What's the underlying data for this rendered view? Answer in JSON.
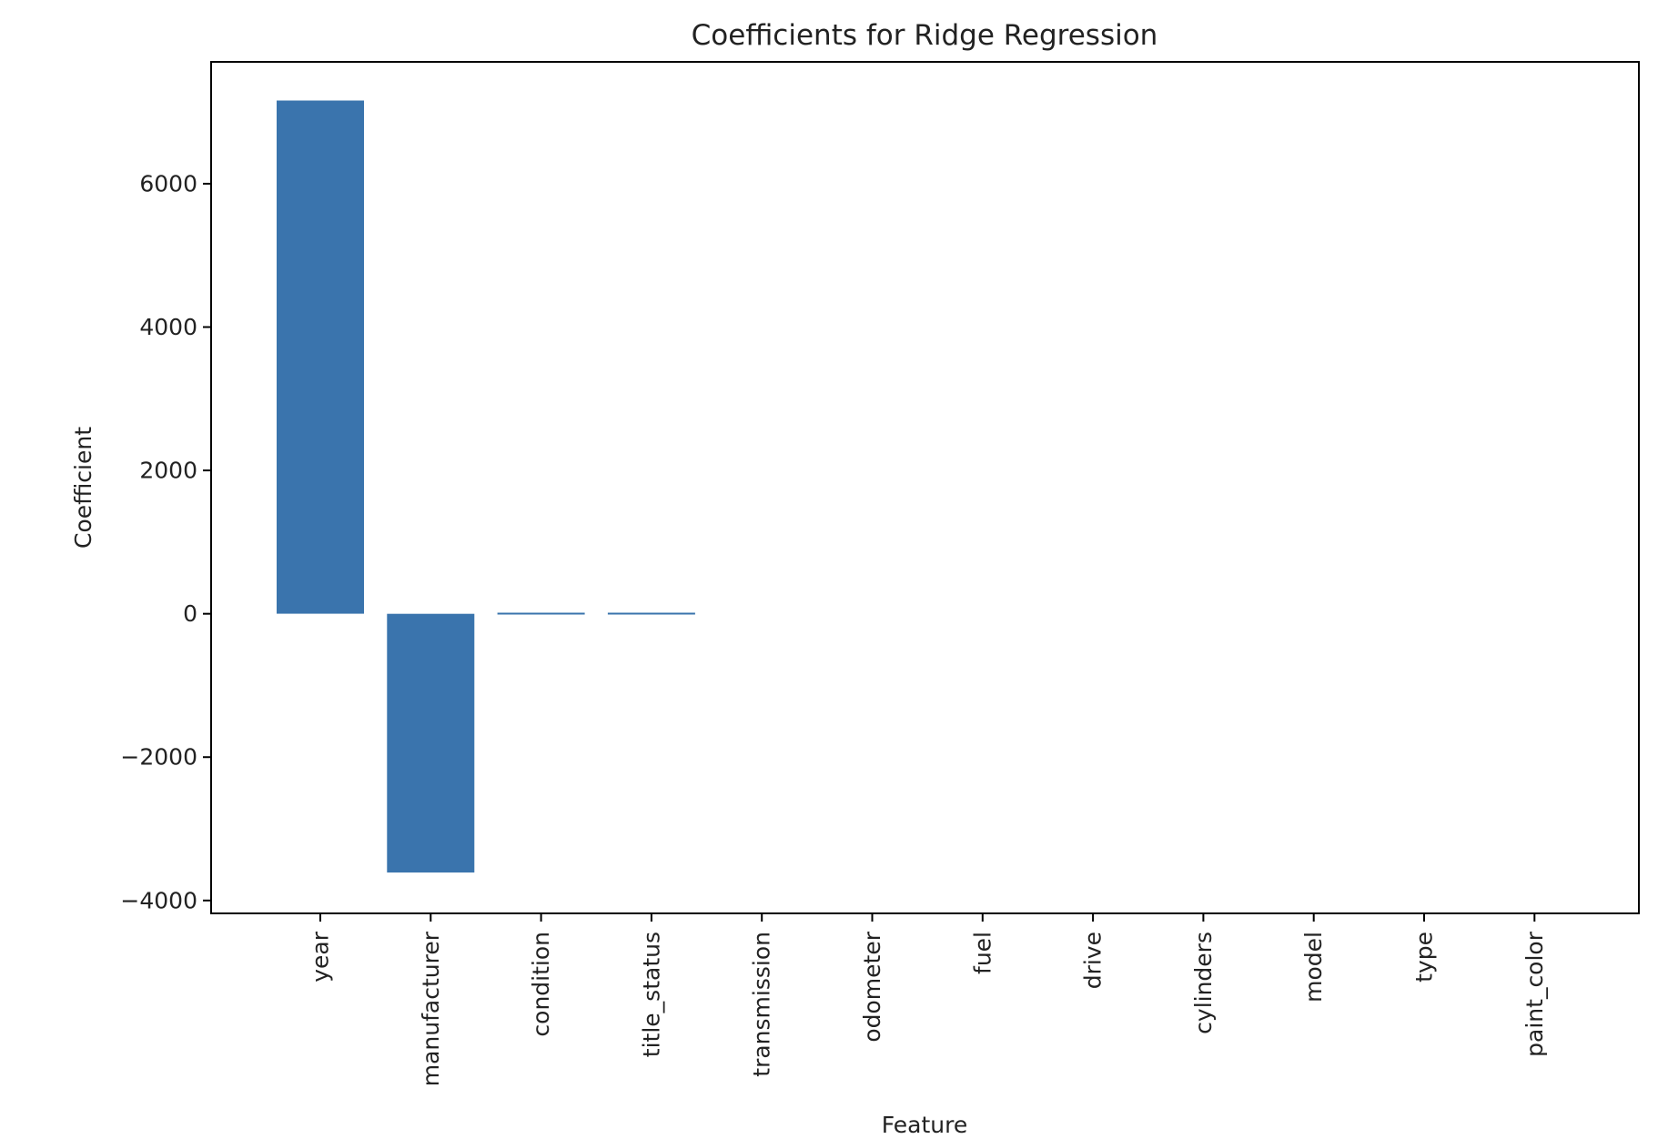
{
  "chart_data": {
    "type": "bar",
    "title": "Coefficients for Ridge Regression",
    "xlabel": "Feature",
    "ylabel": "Coefficient",
    "categories": [
      "year",
      "manufacturer",
      "condition",
      "title_status",
      "transmission",
      "odometer",
      "fuel",
      "drive",
      "cylinders",
      "model",
      "type",
      "paint_color"
    ],
    "values": [
      7160,
      -3610,
      15,
      15,
      0,
      0,
      0,
      0,
      0,
      0,
      0,
      0
    ],
    "ylim": [
      -4180,
      7700
    ],
    "yticks": [
      -4000,
      -2000,
      0,
      2000,
      4000,
      6000
    ],
    "ytick_labels": [
      "−4000",
      "−2000",
      "0",
      "2000",
      "4000",
      "6000"
    ],
    "bar_color": "#3a74ad",
    "grid": false,
    "legend": "none"
  }
}
